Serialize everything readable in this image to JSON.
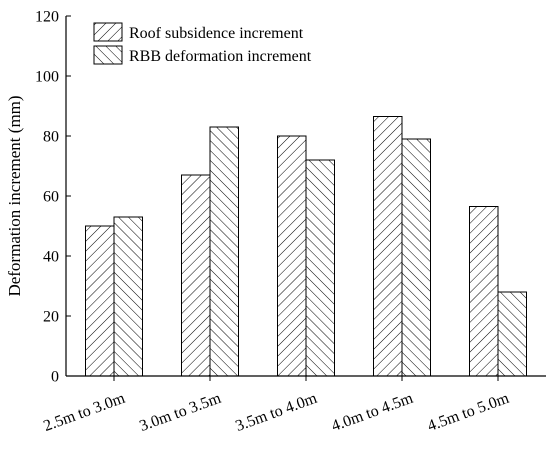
{
  "chart_data": {
    "type": "bar",
    "title": "",
    "xlabel": "",
    "ylabel": "Deformation increment (mm)",
    "ylim": [
      0,
      120
    ],
    "yticks": [
      0,
      20,
      40,
      60,
      80,
      100,
      120
    ],
    "categories": [
      "2.5m to 3.0m",
      "3.0m to 3.5m",
      "3.5m to 4.0m",
      "4.0m to 4.5m",
      "4.5m to 5.0m"
    ],
    "series": [
      {
        "name": "Roof subsidence increment",
        "values": [
          50,
          67,
          80,
          86.5,
          56.5
        ],
        "hatch": "forward-diagonal"
      },
      {
        "name": "RBB deformation increment",
        "values": [
          53,
          83,
          72,
          79,
          28
        ],
        "hatch": "back-diagonal"
      }
    ],
    "legend_position": "top-left",
    "grid": false,
    "colors": {
      "bar_fill": "#ffffff",
      "stroke": "#000000"
    }
  }
}
